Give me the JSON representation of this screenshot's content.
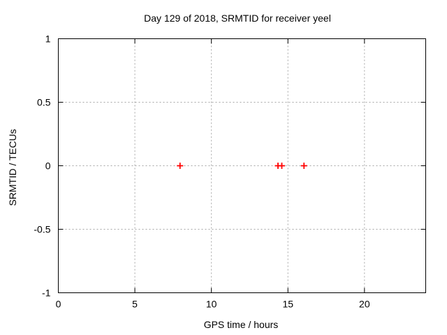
{
  "chart_data": {
    "type": "scatter",
    "title": "Day 129 of 2018, SRMTID for receiver yeel",
    "xlabel": "GPS time / hours",
    "ylabel": "SRMTID / TECUs",
    "xlim": [
      0,
      24
    ],
    "ylim": [
      -1,
      1
    ],
    "x_ticks": [
      0,
      5,
      10,
      15,
      20
    ],
    "x_tick_labels": [
      "0",
      "5",
      "10",
      "15",
      "20"
    ],
    "y_ticks": [
      -1,
      -0.5,
      0,
      0.5,
      1
    ],
    "y_tick_labels": [
      "-1",
      "-0.5",
      "0",
      "0.5",
      "1"
    ],
    "grid": true,
    "grid_style": "dashed",
    "legend_position": "none",
    "series": [
      {
        "marker": "plus",
        "color": "#ff0000",
        "points": [
          [
            7.95,
            0
          ],
          [
            14.35,
            0
          ],
          [
            14.6,
            0
          ],
          [
            16.05,
            0
          ]
        ]
      }
    ],
    "colors": {
      "marker": "#ff0000",
      "grid": "#a6a6a6",
      "axis": "#000000",
      "background": "#ffffff"
    }
  }
}
